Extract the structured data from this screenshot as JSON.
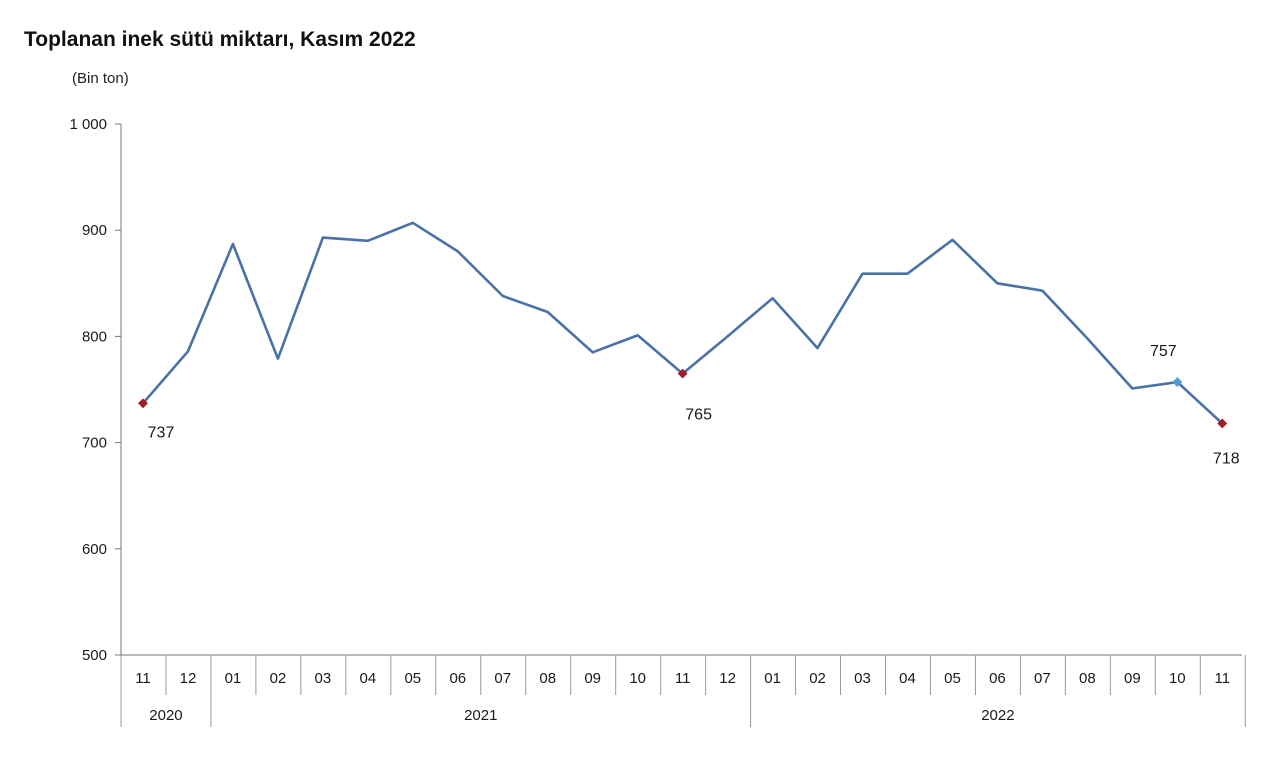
{
  "title": "Toplanan inek sütü miktarı, Kasım 2022",
  "unit_label": "(Bin ton)",
  "chart_data": {
    "type": "line",
    "title": "Toplanan inek sütü miktarı, Kasım 2022",
    "ylabel": "(Bin ton)",
    "xlabel": "",
    "ylim": [
      500,
      1000
    ],
    "y_ticks": [
      500,
      600,
      700,
      800,
      900,
      1000
    ],
    "y_tick_labels": [
      "500",
      "600",
      "700",
      "800",
      "900",
      "1 000"
    ],
    "categories": [
      "11",
      "12",
      "01",
      "02",
      "03",
      "04",
      "05",
      "06",
      "07",
      "08",
      "09",
      "10",
      "11",
      "12",
      "01",
      "02",
      "03",
      "04",
      "05",
      "06",
      "07",
      "08",
      "09",
      "10",
      "11"
    ],
    "year_groups": [
      {
        "label": "2020",
        "count": 2
      },
      {
        "label": "2021",
        "count": 12
      },
      {
        "label": "2022",
        "count": 11
      }
    ],
    "series": [
      {
        "color": "#4a72a8",
        "values": [
          737,
          786,
          887,
          779,
          893,
          890,
          907,
          880,
          838,
          823,
          785,
          801,
          765,
          800,
          836,
          789,
          859,
          859,
          891,
          850,
          843,
          798,
          751,
          757,
          718
        ]
      }
    ],
    "annotations": [
      {
        "index": 0,
        "label": "737",
        "marker_color": "#a0202a"
      },
      {
        "index": 12,
        "label": "765",
        "marker_color": "#a0202a"
      },
      {
        "index": 23,
        "label": "757",
        "marker_color": "#4a9fd8"
      },
      {
        "index": 24,
        "label": "718",
        "marker_color": "#a0202a"
      }
    ],
    "grid": false,
    "legend": "none"
  }
}
